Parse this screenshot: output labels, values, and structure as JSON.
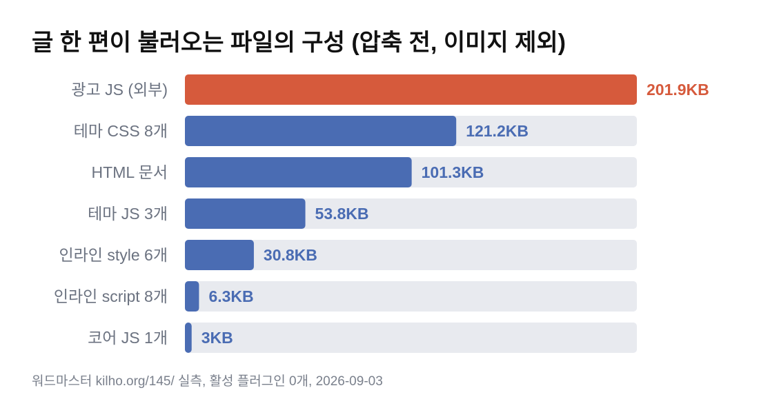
{
  "title": "글 한 편이 불러오는 파일의 구성 (압축 전, 이미지 제외)",
  "source": "워드마스터 kilho.org/145/ 실측, 활성 플러그인 0개, 2026-09-03",
  "colors": {
    "highlight": "#d65a3c",
    "bar": "#4a6cb3",
    "track": "#e8eaef",
    "category_label": "#6b7280",
    "title": "#111111",
    "source": "#7a808c"
  },
  "chart_data": {
    "type": "bar",
    "orientation": "horizontal",
    "categories": [
      "광고 JS (외부)",
      "테마 CSS 8개",
      "HTML 문서",
      "테마 JS 3개",
      "인라인 style 6개",
      "인라인 script 8개",
      "코어 JS 1개"
    ],
    "values": [
      201.9,
      121.2,
      101.3,
      53.8,
      30.8,
      6.3,
      3
    ],
    "value_labels": [
      "201.9KB",
      "121.2KB",
      "101.3KB",
      "53.8KB",
      "30.8KB",
      "6.3KB",
      "3KB"
    ],
    "unit": "KB",
    "highlight_index": 0,
    "xlim": [
      0,
      201.9
    ],
    "grid": false,
    "legend": "none"
  }
}
